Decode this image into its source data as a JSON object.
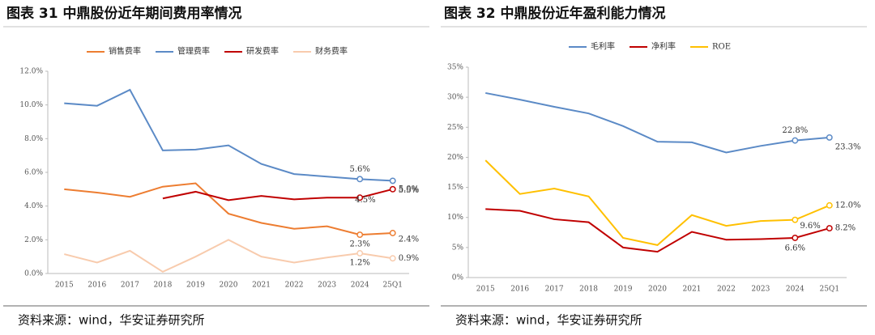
{
  "chart_data": [
    {
      "type": "line",
      "title": "图表 31 中鼎股份近年期间费用率情况",
      "source": "资料来源：wind，华安证券研究所",
      "categories": [
        "2015",
        "2016",
        "2017",
        "2018",
        "2019",
        "2020",
        "2021",
        "2022",
        "2023",
        "2024",
        "25Q1"
      ],
      "ylim": [
        0,
        12
      ],
      "yticks": [
        {
          "value": 0,
          "label": "0.0%"
        },
        {
          "value": 2,
          "label": "2.0%"
        },
        {
          "value": 4,
          "label": "4.0%"
        },
        {
          "value": 6,
          "label": "6.0%"
        },
        {
          "value": 8,
          "label": "8.0%"
        },
        {
          "value": 10,
          "label": "10.0%"
        },
        {
          "value": 12,
          "label": "12.0%"
        }
      ],
      "series": [
        {
          "name": "销售费率",
          "color": "#ED7D31",
          "values": [
            5.0,
            4.8,
            4.55,
            5.15,
            5.35,
            3.55,
            3.0,
            2.65,
            2.8,
            2.3,
            2.4
          ],
          "value_labels": [
            null,
            null,
            null,
            null,
            null,
            null,
            null,
            null,
            null,
            "2.3%",
            "2.4%"
          ]
        },
        {
          "name": "管理费率",
          "color": "#5B8AC6",
          "values": [
            10.1,
            9.95,
            10.9,
            7.3,
            7.35,
            7.6,
            6.5,
            5.9,
            5.75,
            5.6,
            5.5
          ],
          "value_labels": [
            null,
            null,
            null,
            null,
            null,
            null,
            null,
            null,
            null,
            "5.6%",
            "5.5%"
          ]
        },
        {
          "name": "研发费率",
          "color": "#C00000",
          "values": [
            null,
            null,
            null,
            4.45,
            4.85,
            4.35,
            4.6,
            4.4,
            4.5,
            4.5,
            5.0
          ],
          "value_labels": [
            null,
            null,
            null,
            null,
            null,
            null,
            null,
            null,
            null,
            "4.5%",
            "5.0%"
          ]
        },
        {
          "name": "财务费率",
          "color": "#F8CBAD",
          "values": [
            1.15,
            0.65,
            1.35,
            0.1,
            1.0,
            2.0,
            1.0,
            0.65,
            0.95,
            1.2,
            0.9
          ],
          "value_labels": [
            null,
            null,
            null,
            null,
            null,
            null,
            null,
            null,
            null,
            "1.2%",
            "0.9%"
          ]
        }
      ]
    },
    {
      "type": "line",
      "title": "图表 32 中鼎股份近年盈利能力情况",
      "source": "资料来源：wind，华安证券研究所",
      "categories": [
        "2015",
        "2016",
        "2017",
        "2018",
        "2019",
        "2020",
        "2021",
        "2022",
        "2023",
        "2024",
        "25Q1"
      ],
      "ylim": [
        0,
        35
      ],
      "yticks": [
        {
          "value": 0,
          "label": "0%"
        },
        {
          "value": 5,
          "label": "5%"
        },
        {
          "value": 10,
          "label": "10%"
        },
        {
          "value": 15,
          "label": "15%"
        },
        {
          "value": 20,
          "label": "20%"
        },
        {
          "value": 25,
          "label": "25%"
        },
        {
          "value": 30,
          "label": "30%"
        },
        {
          "value": 35,
          "label": "35%"
        }
      ],
      "series": [
        {
          "name": "毛利率",
          "color": "#5B8AC6",
          "values": [
            30.7,
            29.6,
            28.4,
            27.3,
            25.2,
            22.6,
            22.5,
            20.8,
            21.9,
            22.8,
            23.3
          ],
          "value_labels": [
            null,
            null,
            null,
            null,
            null,
            null,
            null,
            null,
            null,
            "22.8%",
            "23.3%"
          ]
        },
        {
          "name": "净利率",
          "color": "#C00000",
          "values": [
            11.4,
            11.1,
            9.7,
            9.2,
            5.0,
            4.3,
            7.6,
            6.3,
            6.4,
            6.6,
            8.2
          ],
          "value_labels": [
            null,
            null,
            null,
            null,
            null,
            null,
            null,
            null,
            null,
            "6.6%",
            "8.2%"
          ]
        },
        {
          "name": "ROE",
          "color": "#FFC000",
          "values": [
            19.5,
            13.9,
            14.8,
            13.5,
            6.6,
            5.4,
            10.4,
            8.6,
            9.4,
            9.6,
            12.0
          ],
          "value_labels": [
            null,
            null,
            null,
            null,
            null,
            null,
            null,
            null,
            null,
            "9.6%",
            "12.0%"
          ]
        }
      ]
    }
  ]
}
